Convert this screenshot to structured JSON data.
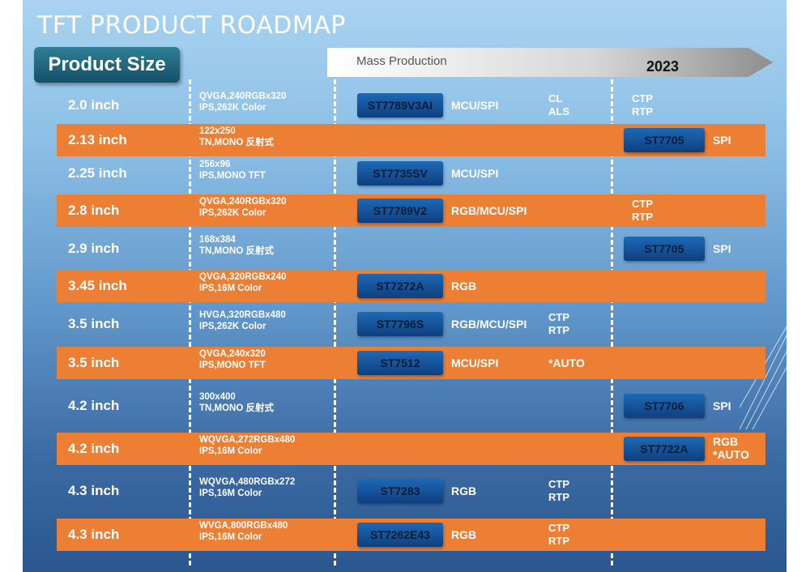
{
  "title": "TFT PRODUCT ROADMAP",
  "product_size_label": "Product Size",
  "timeline": {
    "mass_production": "Mass Production",
    "year": "2023"
  },
  "rows": [
    {
      "size": "2.0 inch",
      "spec": "QVGA,240RGBx320\nIPS,262K Color",
      "chip": "ST7789V3AI",
      "iface": "MCU/SPI",
      "extra": "CL\nALS",
      "col2023": "CTP\nRTP"
    },
    {
      "size": "2.13 inch",
      "spec": "122x250\nTN,MONO 反射式",
      "chip2023": "ST7705",
      "iface2023": "SPI"
    },
    {
      "size": "2.25 inch",
      "spec": "256x96\nIPS,MONO TFT",
      "chip": "ST7735SV",
      "iface": "MCU/SPI"
    },
    {
      "size": "2.8 inch",
      "spec": "QVGA,240RGBx320\nIPS,262K Color",
      "chip": "ST7789V2",
      "iface": "RGB/MCU/SPI",
      "col2023": "CTP\nRTP"
    },
    {
      "size": "2.9 inch",
      "spec": "168x384\nTN,MONO 反射式",
      "chip2023": "ST7705",
      "iface2023": "SPI"
    },
    {
      "size": "3.45 inch",
      "spec": "QVGA,320RGBx240\nIPS,16M Color",
      "chip": "ST7272A",
      "iface": "RGB"
    },
    {
      "size": "3.5 inch",
      "spec": "HVGA,320RGBx480\nIPS,262K Color",
      "chip": "ST7796S",
      "iface": "RGB/MCU/SPI",
      "extra": "CTP\nRTP"
    },
    {
      "size": "3.5 inch",
      "spec": "QVGA,240x320\nIPS,MONO TFT",
      "chip": "ST7512",
      "iface": "MCU/SPI",
      "extra": "*AUTO"
    },
    {
      "size": "4.2 inch",
      "spec": "300x400\nTN,MONO 反射式",
      "chip2023": "ST7706",
      "iface2023": "SPI"
    },
    {
      "size": "4.2 inch",
      "spec": "WQVGA,272RGBx480\nIPS,16M Color",
      "chip2023": "ST7722A",
      "iface2023": "RGB\n*AUTO"
    },
    {
      "size": "4.3 inch",
      "spec": "WQVGA,480RGBx272\nIPS,16M Color",
      "chip": "ST7283",
      "iface": "RGB",
      "extra": "CTP\nRTP"
    },
    {
      "size": "4.3 inch",
      "spec": "WVGA,800RGBx480\nIPS,16M Color",
      "chip": "ST7262E43",
      "iface": "RGB",
      "extra": "CTP\nRTP"
    }
  ]
}
